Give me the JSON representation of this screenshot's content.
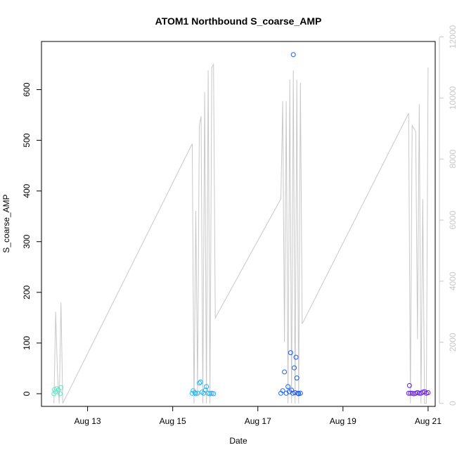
{
  "chart_data": {
    "type": "scatter",
    "title": "ATOM1 Northbound S_coarse_AMP",
    "xlabel": "Date",
    "ylabel": "S_coarse_AMP",
    "xlim": [
      "2023-08-11T22:00",
      "2023-08-21T04:00"
    ],
    "ylim": [
      -25,
      695
    ],
    "y2lim": [
      -100,
      11850
    ],
    "x_ticks": [
      {
        "value": "2023-08-13T00:00",
        "label": "Aug 13"
      },
      {
        "value": "2023-08-15T00:00",
        "label": "Aug 15"
      },
      {
        "value": "2023-08-17T00:00",
        "label": "Aug 17"
      },
      {
        "value": "2023-08-19T00:00",
        "label": "Aug 19"
      },
      {
        "value": "2023-08-21T00:00",
        "label": "Aug 21"
      }
    ],
    "y_ticks": [
      0,
      100,
      200,
      300,
      400,
      500,
      600
    ],
    "y2_ticks": [
      0,
      2000,
      4000,
      6000,
      8000,
      10000,
      12000
    ],
    "grid": false,
    "colors": {
      "secondary_line": "#c8c8c8",
      "point_palette": [
        "#5ee8c4",
        "#28c8f0",
        "#1f50ee",
        "#6a18e6"
      ]
    },
    "secondary_line": [
      [
        "2023-08-12T05:00",
        0
      ],
      [
        "2023-08-12T06:00",
        3000
      ],
      [
        "2023-08-12T07:00",
        1000
      ],
      [
        "2023-08-12T08:00",
        0
      ],
      [
        "2023-08-12T09:00",
        3300
      ],
      [
        "2023-08-12T10:00",
        0
      ],
      [
        "2023-08-15T11:00",
        8500
      ],
      [
        "2023-08-15T12:00",
        0
      ],
      [
        "2023-08-15T13:00",
        6300
      ],
      [
        "2023-08-15T14:00",
        400
      ],
      [
        "2023-08-15T15:00",
        9100
      ],
      [
        "2023-08-15T16:00",
        9400
      ],
      [
        "2023-08-15T17:00",
        0
      ],
      [
        "2023-08-15T18:00",
        10200
      ],
      [
        "2023-08-15T19:00",
        0
      ],
      [
        "2023-08-15T20:00",
        10900
      ],
      [
        "2023-08-15T21:00",
        0
      ],
      [
        "2023-08-15T22:00",
        11000
      ],
      [
        "2023-08-15T23:00",
        11100
      ],
      [
        "2023-08-16T00:00",
        2800
      ],
      [
        "2023-08-17T13:00",
        6700
      ],
      [
        "2023-08-17T14:00",
        9900
      ],
      [
        "2023-08-17T15:00",
        2000
      ],
      [
        "2023-08-17T16:00",
        9900
      ],
      [
        "2023-08-17T17:00",
        0
      ],
      [
        "2023-08-17T18:00",
        10600
      ],
      [
        "2023-08-17T19:00",
        0
      ],
      [
        "2023-08-17T20:00",
        10900
      ],
      [
        "2023-08-17T21:00",
        0
      ],
      [
        "2023-08-17T22:00",
        10600
      ],
      [
        "2023-08-17T23:00",
        0
      ],
      [
        "2023-08-18T00:00",
        10500
      ],
      [
        "2023-08-18T01:00",
        2600
      ],
      [
        "2023-08-20T13:00",
        9500
      ],
      [
        "2023-08-20T14:00",
        0
      ],
      [
        "2023-08-20T15:00",
        9100
      ],
      [
        "2023-08-20T16:00",
        9000
      ],
      [
        "2023-08-20T17:00",
        8900
      ],
      [
        "2023-08-20T18:00",
        2100
      ],
      [
        "2023-08-20T19:00",
        9800
      ],
      [
        "2023-08-20T20:00",
        0
      ],
      [
        "2023-08-20T21:00",
        6700
      ],
      [
        "2023-08-20T22:00",
        0
      ],
      [
        "2023-08-20T23:00",
        0
      ],
      [
        "2023-08-21T00:00",
        11000
      ]
    ],
    "points": [
      [
        "2023-08-12T05:00",
        0
      ],
      [
        "2023-08-12T05:20",
        8
      ],
      [
        "2023-08-12T06:00",
        4
      ],
      [
        "2023-08-12T06:30",
        10
      ],
      [
        "2023-08-12T07:30",
        7
      ],
      [
        "2023-08-12T08:30",
        0
      ],
      [
        "2023-08-12T09:00",
        12
      ],
      [
        "2023-08-15T11:00",
        1
      ],
      [
        "2023-08-15T11:30",
        6
      ],
      [
        "2023-08-15T12:30",
        2
      ],
      [
        "2023-08-15T13:00",
        0
      ],
      [
        "2023-08-15T14:00",
        1
      ],
      [
        "2023-08-15T15:00",
        21
      ],
      [
        "2023-08-15T15:40",
        23
      ],
      [
        "2023-08-15T16:30",
        3
      ],
      [
        "2023-08-15T17:30",
        1
      ],
      [
        "2023-08-15T18:30",
        7
      ],
      [
        "2023-08-15T19:00",
        14
      ],
      [
        "2023-08-15T20:00",
        1
      ],
      [
        "2023-08-15T21:00",
        0
      ],
      [
        "2023-08-15T22:00",
        1
      ],
      [
        "2023-08-15T23:00",
        0
      ],
      [
        "2023-08-17T13:00",
        1
      ],
      [
        "2023-08-17T14:00",
        6
      ],
      [
        "2023-08-17T15:00",
        43
      ],
      [
        "2023-08-17T16:00",
        1
      ],
      [
        "2023-08-17T17:00",
        14
      ],
      [
        "2023-08-17T17:45",
        4
      ],
      [
        "2023-08-17T18:30",
        81
      ],
      [
        "2023-08-17T19:00",
        7
      ],
      [
        "2023-08-17T19:40",
        1
      ],
      [
        "2023-08-17T20:00",
        669
      ],
      [
        "2023-08-17T20:30",
        51
      ],
      [
        "2023-08-17T21:00",
        2
      ],
      [
        "2023-08-17T21:30",
        72
      ],
      [
        "2023-08-17T22:00",
        31
      ],
      [
        "2023-08-17T22:30",
        1
      ],
      [
        "2023-08-17T23:00",
        0
      ],
      [
        "2023-08-18T00:00",
        1
      ],
      [
        "2023-08-20T13:00",
        1
      ],
      [
        "2023-08-20T13:30",
        16
      ],
      [
        "2023-08-20T14:00",
        1
      ],
      [
        "2023-08-20T15:00",
        1
      ],
      [
        "2023-08-20T16:00",
        0
      ],
      [
        "2023-08-20T17:00",
        1
      ],
      [
        "2023-08-20T18:00",
        2
      ],
      [
        "2023-08-20T19:00",
        1
      ],
      [
        "2023-08-20T20:00",
        1
      ],
      [
        "2023-08-20T21:00",
        3
      ],
      [
        "2023-08-20T22:00",
        4
      ],
      [
        "2023-08-20T23:00",
        1
      ],
      [
        "2023-08-21T00:00",
        2
      ]
    ]
  }
}
